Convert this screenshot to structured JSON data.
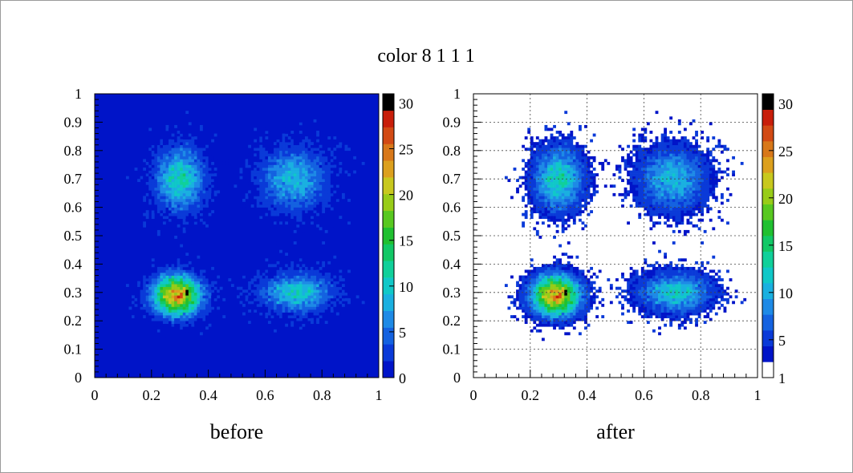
{
  "canvas": {
    "title": "color 8 1 1 1",
    "border_color": "#9a9a9a"
  },
  "palette": [
    "#ffffff",
    "#0014c8",
    "#0a3ad8",
    "#1462e0",
    "#1e8ae6",
    "#1ab0e0",
    "#10c8c8",
    "#10d09a",
    "#12c866",
    "#20c030",
    "#58c820",
    "#98cc18",
    "#c8c81e",
    "#dca01e",
    "#d8781a",
    "#d24a14",
    "#c81e0a",
    "#000000"
  ],
  "chart_data": [
    {
      "id": "before",
      "type": "heatmap",
      "title": "",
      "label": "before",
      "xlim": [
        0,
        1
      ],
      "ylim": [
        0,
        1
      ],
      "x_ticks": [
        "0",
        "0.2",
        "0.4",
        "0.6",
        "0.8",
        "1"
      ],
      "y_ticks": [
        "0",
        "0.1",
        "0.2",
        "0.3",
        "0.4",
        "0.5",
        "0.6",
        "0.7",
        "0.8",
        "0.9",
        "1"
      ],
      "z_range": [
        0,
        31
      ],
      "z_ticks": [
        "0",
        "5",
        "10",
        "15",
        "20",
        "25",
        "30"
      ],
      "grid": false,
      "empty_bins_color": "#0014c8",
      "bins": [
        100,
        100
      ],
      "clusters": [
        {
          "x": 0.29,
          "y": 0.29,
          "sx": 0.055,
          "sy": 0.045,
          "peak": 26
        },
        {
          "x": 0.71,
          "y": 0.3,
          "sx": 0.08,
          "sy": 0.042,
          "peak": 11
        },
        {
          "x": 0.3,
          "y": 0.7,
          "sx": 0.055,
          "sy": 0.07,
          "peak": 12
        },
        {
          "x": 0.7,
          "y": 0.7,
          "sx": 0.075,
          "sy": 0.07,
          "peak": 9
        }
      ],
      "max_bin": {
        "x": 0.325,
        "y": 0.295,
        "value": 31
      }
    },
    {
      "id": "after",
      "type": "heatmap",
      "title": "",
      "label": "after",
      "xlim": [
        0,
        1
      ],
      "ylim": [
        0,
        1
      ],
      "x_ticks": [
        "0",
        "0.2",
        "0.4",
        "0.6",
        "0.8",
        "1"
      ],
      "y_ticks": [
        "0",
        "0.1",
        "0.2",
        "0.3",
        "0.4",
        "0.5",
        "0.6",
        "0.7",
        "0.8",
        "0.9",
        "1"
      ],
      "z_range": [
        1,
        31
      ],
      "z_ticks": [
        "1",
        "5",
        "10",
        "15",
        "20",
        "25",
        "30"
      ],
      "grid": true,
      "empty_bins_color": "#ffffff",
      "bins": [
        100,
        100
      ],
      "clusters": [
        {
          "x": 0.29,
          "y": 0.29,
          "sx": 0.055,
          "sy": 0.045,
          "peak": 26
        },
        {
          "x": 0.71,
          "y": 0.3,
          "sx": 0.08,
          "sy": 0.042,
          "peak": 11
        },
        {
          "x": 0.3,
          "y": 0.7,
          "sx": 0.055,
          "sy": 0.07,
          "peak": 12
        },
        {
          "x": 0.7,
          "y": 0.7,
          "sx": 0.075,
          "sy": 0.07,
          "peak": 9
        }
      ],
      "max_bin": {
        "x": 0.325,
        "y": 0.295,
        "value": 31
      }
    }
  ]
}
